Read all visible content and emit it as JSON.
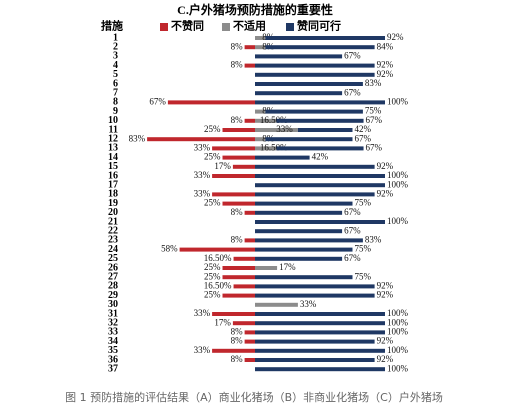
{
  "chart_data": {
    "type": "diverging-bar",
    "title": "C.户外猪场预防措施的重要性",
    "ylabel": "措施",
    "caption": "图 1 预防措施的评估结果（A）商业化猪场（B）非商业化猪场（C）户外猪场",
    "categories": [
      "1",
      "2",
      "3",
      "4",
      "5",
      "6",
      "7",
      "8",
      "9",
      "10",
      "11",
      "12",
      "13",
      "14",
      "15",
      "16",
      "17",
      "18",
      "19",
      "20",
      "21",
      "22",
      "23",
      "24",
      "25",
      "26",
      "27",
      "28",
      "29",
      "30",
      "31",
      "32",
      "33",
      "34",
      "35",
      "36",
      "37"
    ],
    "series": [
      {
        "name": "不赞同",
        "color": "#c0272d",
        "values": [
          null,
          8,
          null,
          8,
          null,
          null,
          null,
          67,
          null,
          8,
          25,
          83,
          33,
          25,
          17,
          33,
          null,
          33,
          25,
          8,
          null,
          null,
          8,
          58,
          16.5,
          25,
          25,
          16.5,
          25,
          null,
          33,
          17,
          8,
          8,
          33,
          8,
          null
        ],
        "value_labels": [
          null,
          "8%",
          null,
          "8%",
          null,
          null,
          null,
          "67%",
          null,
          "8%",
          "25%",
          "83%",
          "33%",
          "25%",
          "17%",
          "33%",
          null,
          "33%",
          "25%",
          "8%",
          null,
          null,
          "8%",
          "58%",
          "16.50%",
          "25%",
          "25%",
          "16.50%",
          "25%",
          null,
          "33%",
          "17%",
          "8%",
          "8%",
          "33%",
          "8%",
          null
        ]
      },
      {
        "name": "不适用",
        "color": "#8c8c8c",
        "values": [
          8,
          8,
          null,
          null,
          null,
          null,
          null,
          null,
          8,
          16.5,
          33,
          8,
          16.5,
          null,
          null,
          null,
          null,
          null,
          null,
          null,
          null,
          null,
          null,
          null,
          null,
          17,
          null,
          null,
          null,
          33,
          null,
          null,
          null,
          null,
          null,
          null,
          null
        ],
        "value_labels": [
          "8%",
          "8%",
          null,
          null,
          null,
          null,
          null,
          null,
          "8%",
          "16.50%",
          "33%",
          "8%",
          "16.50%",
          null,
          null,
          null,
          null,
          null,
          null,
          null,
          null,
          null,
          null,
          null,
          null,
          "17%",
          null,
          null,
          null,
          "33%",
          null,
          null,
          null,
          null,
          null,
          null,
          null
        ]
      },
      {
        "name": "赞同可行",
        "color": "#1f3864",
        "values": [
          92,
          84,
          67,
          92,
          92,
          83,
          67,
          100,
          75,
          67,
          42,
          67,
          67,
          42,
          92,
          100,
          100,
          92,
          75,
          67,
          100,
          67,
          83,
          75,
          67,
          null,
          75,
          92,
          92,
          null,
          100,
          100,
          100,
          92,
          100,
          92,
          100
        ],
        "value_labels": [
          "92%",
          "84%",
          "67%",
          "92%",
          "92%",
          "83%",
          "67%",
          "100%",
          "75%",
          "67%",
          "42%",
          "67%",
          "67%",
          "42%",
          "92%",
          "100%",
          "100%",
          "92%",
          "75%",
          "67%",
          "100%",
          "67%",
          "83%",
          "75%",
          "67%",
          null,
          "75%",
          "92%",
          "92%",
          null,
          "100%",
          "100%",
          "100%",
          "92%",
          "100%",
          "92%",
          "100%"
        ]
      }
    ]
  }
}
